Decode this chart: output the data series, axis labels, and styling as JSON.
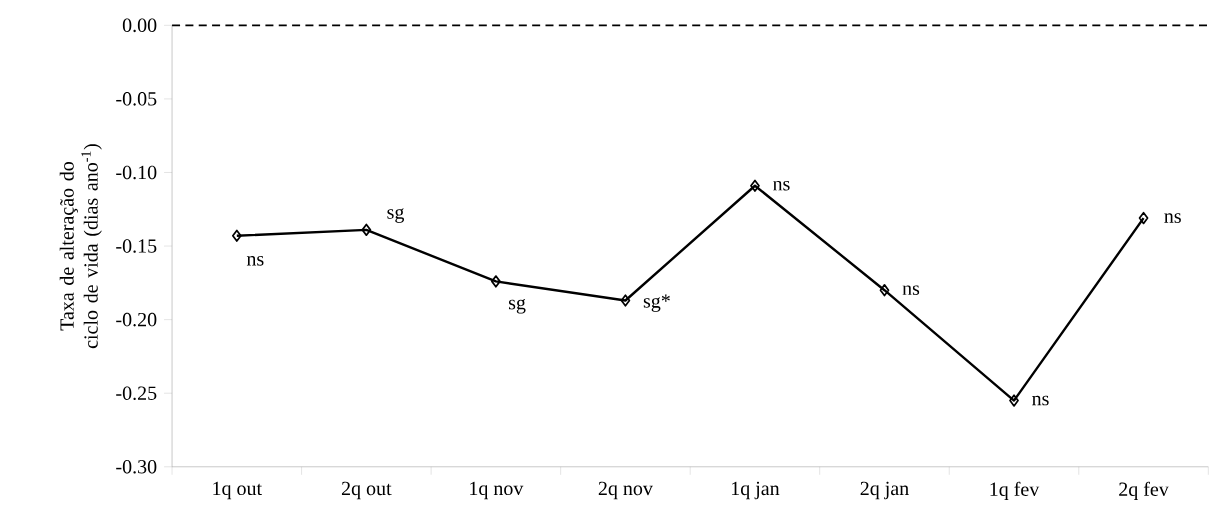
{
  "chart_data": {
    "type": "line",
    "ylabel": "Taxa de alteração do ciclo de vida (dias ano$^{-1}$)",
    "categories": [
      "1q out",
      "2q out",
      "1q nov",
      "2q nov",
      "1q jan",
      "2q jan",
      "1q fev",
      "2q fev"
    ],
    "series": [
      {
        "color": "#000000",
        "values": [
          -0.143,
          -0.139,
          -0.174,
          -0.187,
          -0.109,
          -0.18,
          -0.255,
          -0.131
        ]
      }
    ],
    "ylim": [
      -0.3,
      0.0
    ],
    "yticks": [
      {
        "value": -0.3,
        "label": "-0.30"
      },
      {
        "value": -0.25,
        "label": "-0.25"
      },
      {
        "value": -0.2,
        "label": "-0.20"
      },
      {
        "value": -0.15,
        "label": "-0.15"
      },
      {
        "value": -0.1,
        "label": "-0.10"
      },
      {
        "value": -0.05,
        "label": "-0.05"
      },
      {
        "value": 0.0,
        "label": "0.00"
      }
    ],
    "ref_lines": [
      {
        "axis": "y",
        "value": 0.0,
        "color": "#000000",
        "line_style": "dashed"
      }
    ],
    "annotations": [
      {
        "text": "ns",
        "x": "1q out",
        "y": -0.143
      },
      {
        "text": "sg",
        "x": "2q out",
        "y": -0.139
      },
      {
        "text": "sg",
        "x": "1q nov",
        "y": -0.174
      },
      {
        "text": "sg*",
        "x": "2q nov",
        "y": -0.187
      },
      {
        "text": "ns",
        "x": "1q jan",
        "y": -0.109
      },
      {
        "text": "ns",
        "x": "2q jan",
        "y": -0.18
      },
      {
        "text": "ns",
        "x": "1q fev",
        "y": -0.255
      },
      {
        "text": "ns",
        "x": "2q fev",
        "y": -0.131
      }
    ],
    "marker": "diamond",
    "line_style": "solid",
    "grid": false
  }
}
